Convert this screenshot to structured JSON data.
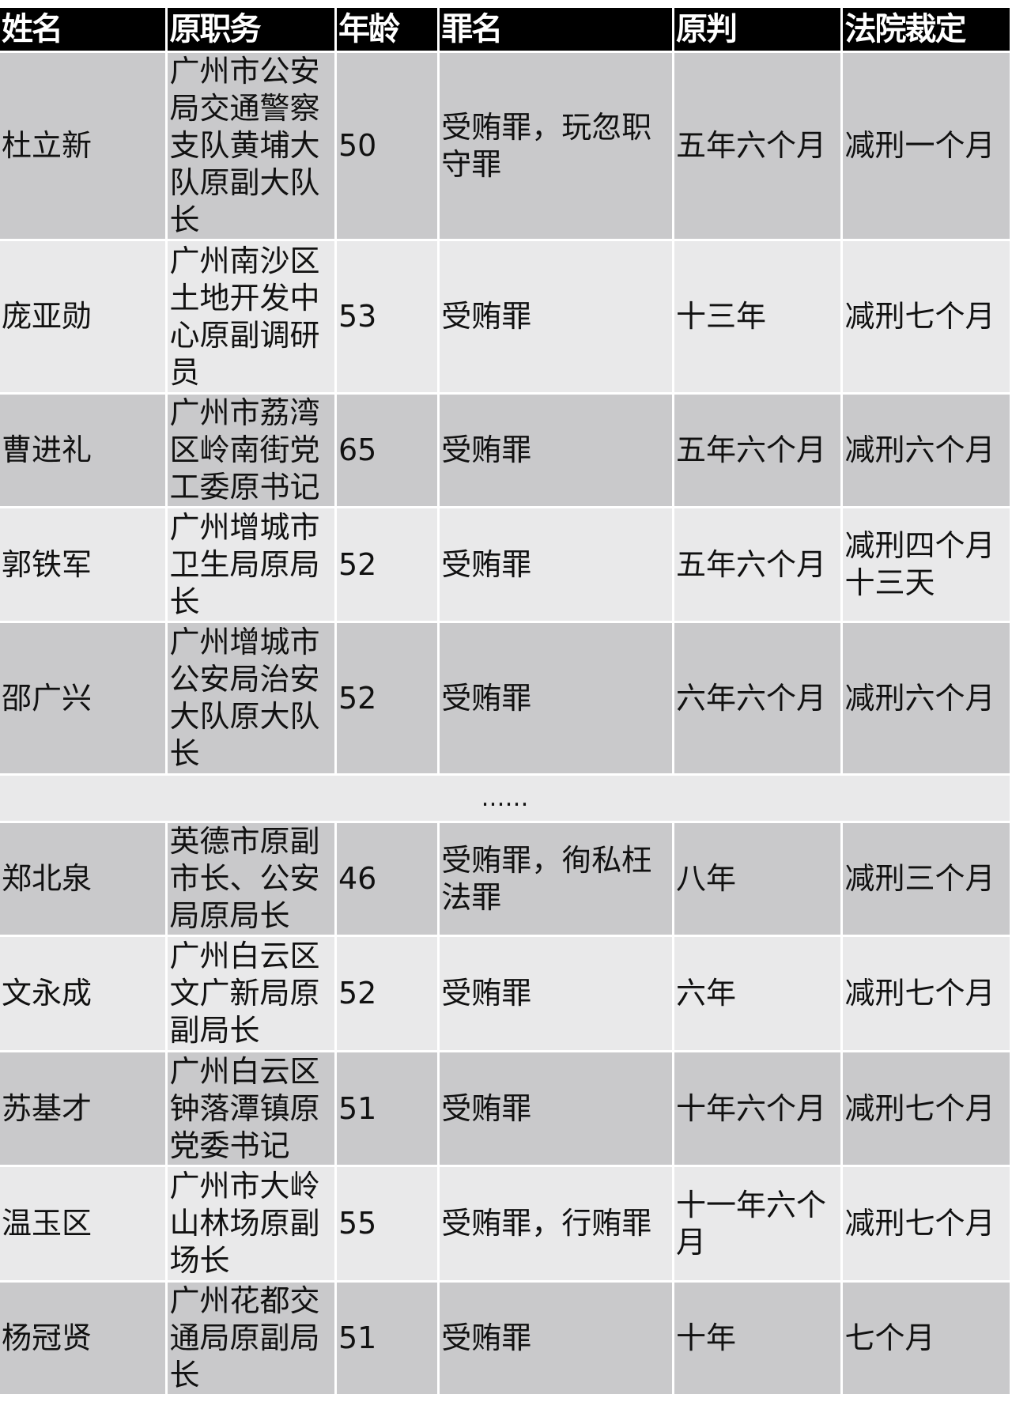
{
  "headers": [
    "姓名",
    "原职务",
    "年龄",
    "罪名",
    "原判",
    "法院裁定"
  ],
  "rows": [
    {
      "name": "杜立新",
      "position": "广州市公安局交通警察支队黄埔大队原副大队长",
      "age": "50",
      "crime": "受贿罪，玩忽职守罪",
      "sentence": "五年六个月",
      "ruling": "减刑一个月"
    },
    {
      "name": "庞亚勋",
      "position": "广州南沙区土地开发中心原副调研员",
      "age": "53",
      "crime": "受贿罪",
      "sentence": "十三年",
      "ruling": "减刑七个月"
    },
    {
      "name": "曹进礼",
      "position": "广州市荔湾区岭南街党工委原书记",
      "age": "65",
      "crime": "受贿罪",
      "sentence": "五年六个月",
      "ruling": "减刑六个月"
    },
    {
      "name": "郭铁军",
      "position": "广州增城市卫生局原局长",
      "age": "52",
      "crime": "受贿罪",
      "sentence": "五年六个月",
      "ruling": "减刑四个月十三天"
    },
    {
      "name": "邵广兴",
      "position": "广州增城市公安局治安大队原大队长",
      "age": "52",
      "crime": "受贿罪",
      "sentence": "六年六个月",
      "ruling": "减刑六个月"
    }
  ],
  "ellipsis": "……",
  "rows2": [
    {
      "name": "郑北泉",
      "position": "英德市原副市长、公安局原局长",
      "age": "46",
      "crime": "受贿罪，徇私枉法罪",
      "sentence": "八年",
      "ruling": "减刑三个月"
    },
    {
      "name": "文永成",
      "position": "广州白云区文广新局原副局长",
      "age": "52",
      "crime": "受贿罪",
      "sentence": "六年",
      "ruling": "减刑七个月"
    },
    {
      "name": "苏基才",
      "position": "广州白云区钟落潭镇原党委书记",
      "age": "51",
      "crime": "受贿罪",
      "sentence": "十年六个月",
      "ruling": "减刑七个月"
    },
    {
      "name": "温玉区",
      "position": "广州市大岭山林场原副场长",
      "age": "55",
      "crime": "受贿罪，行贿罪",
      "sentence": "十一年六个月",
      "ruling": "减刑七个月"
    },
    {
      "name": "杨冠贤",
      "position": "广州花都交通局原副局长",
      "age": "51",
      "crime": "受贿罪",
      "sentence": "十年",
      "ruling": "七个月"
    }
  ]
}
